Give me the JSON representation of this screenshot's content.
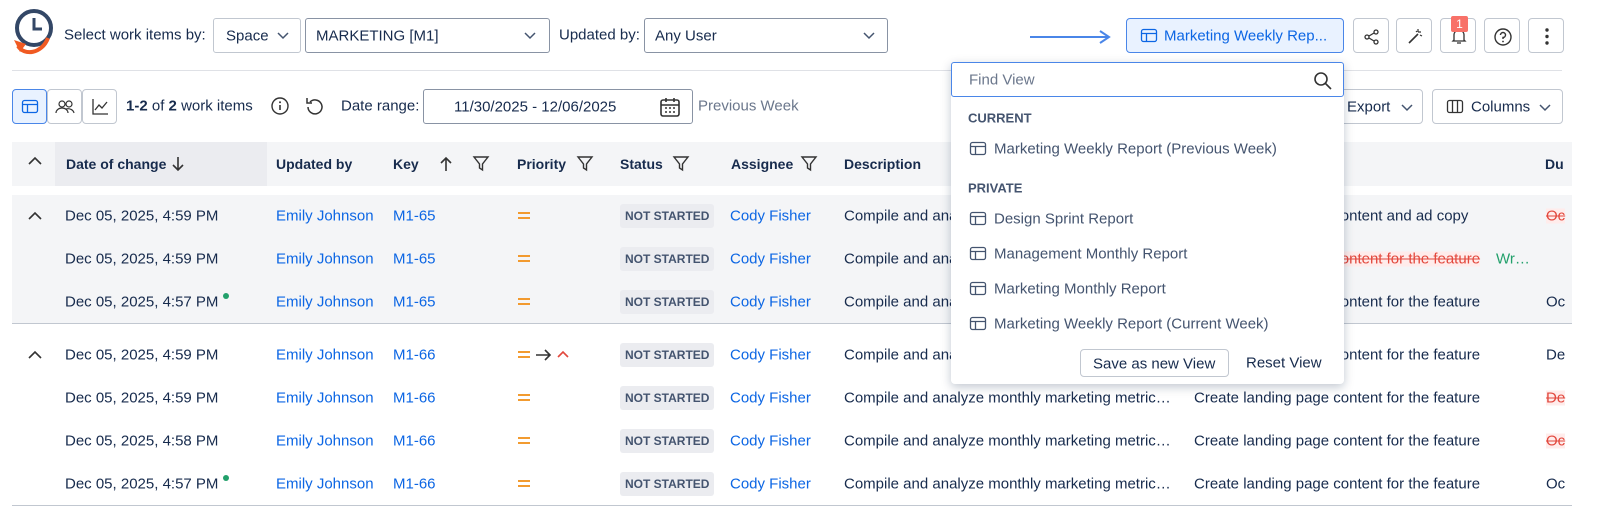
{
  "toolbar": {
    "select_label": "Select work items by:",
    "space": "Space",
    "project": "MARKETING [M1]",
    "updated_by_label": "Updated by:",
    "updated_by": "Any User",
    "view": "Marketing Weekly Rep...",
    "notifications": "1"
  },
  "subbar": {
    "range": "1-2",
    "of": "of",
    "total": "2",
    "items": "work items",
    "date_label": "Date range:",
    "date_range": "11/30/2025 - 12/06/2025",
    "preset": "Previous Week",
    "export": "Export",
    "columns": "Columns"
  },
  "table": {
    "headers": [
      "Date of change",
      "Updated by",
      "Key",
      "Priority",
      "Status",
      "Assignee",
      "Description",
      "Du"
    ],
    "groups": [
      {
        "rows": [
          {
            "date": "Dec 05, 2025, 4:59 PM",
            "updated_by": "Emily Johnson",
            "key": "M1-65",
            "status": "NOT STARTED",
            "assignee": "Cody Fisher",
            "description": "Compile and analyze monthly marketing metric…",
            "summary": "Create landing page content and ad copy",
            "due": {
              "text": "Oc",
              "struck": true
            }
          },
          {
            "date": "Dec 05, 2025, 4:59 PM",
            "updated_by": "Emily Johnson",
            "key": "M1-65",
            "status": "NOT STARTED",
            "assignee": "Cody Fisher",
            "description": "Compile and analyze monthly marketing metric…",
            "summary_old": "Create landing page content for the feature",
            "summary": "Wr…"
          },
          {
            "date": "Dec 05, 2025, 4:57 PM",
            "dot": true,
            "updated_by": "Emily Johnson",
            "key": "M1-65",
            "status": "NOT STARTED",
            "assignee": "Cody Fisher",
            "description": "Compile and analyze monthly marketing metric…",
            "summary": "Create landing page content for the feature",
            "due": {
              "text": "Oc",
              "struck": false
            }
          }
        ]
      },
      {
        "rows": [
          {
            "date": "Dec 05, 2025, 4:59 PM",
            "updated_by": "Emily Johnson",
            "key": "M1-66",
            "priority_change": true,
            "status": "NOT STARTED",
            "assignee": "Cody Fisher",
            "description": "Compile and analyze monthly marketing metric…",
            "summary": "Create landing page content for the feature",
            "due": {
              "text": "De",
              "struck": false
            }
          },
          {
            "date": "Dec 05, 2025, 4:59 PM",
            "updated_by": "Emily Johnson",
            "key": "M1-66",
            "status": "NOT STARTED",
            "assignee": "Cody Fisher",
            "description": "Compile and analyze monthly marketing metric…",
            "summary": "Create landing page content for the feature",
            "due": {
              "text": "De",
              "struck": true
            }
          },
          {
            "date": "Dec 05, 2025, 4:58 PM",
            "updated_by": "Emily Johnson",
            "key": "M1-66",
            "status": "NOT STARTED",
            "assignee": "Cody Fisher",
            "description": "Compile and analyze monthly marketing metric…",
            "summary": "Create landing page content for the feature",
            "due": {
              "text": "Oc",
              "struck": true
            }
          },
          {
            "date": "Dec 05, 2025, 4:57 PM",
            "dot": true,
            "updated_by": "Emily Johnson",
            "key": "M1-66",
            "status": "NOT STARTED",
            "assignee": "Cody Fisher",
            "description": "Compile and analyze monthly marketing metric…",
            "summary": "Create landing page content for the feature",
            "due": {
              "text": "Oc",
              "struck": false
            }
          }
        ]
      }
    ]
  },
  "dropdown": {
    "placeholder": "Find View",
    "sections": [
      {
        "title": "CURRENT",
        "items": [
          "Marketing Weekly Report (Previous Week)"
        ]
      },
      {
        "title": "PRIVATE",
        "items": [
          "Design Sprint Report",
          "Management Monthly Report",
          "Marketing Monthly Report",
          "Marketing Weekly Report (Current Week)"
        ]
      }
    ],
    "save": "Save as new View",
    "reset": "Reset View"
  }
}
